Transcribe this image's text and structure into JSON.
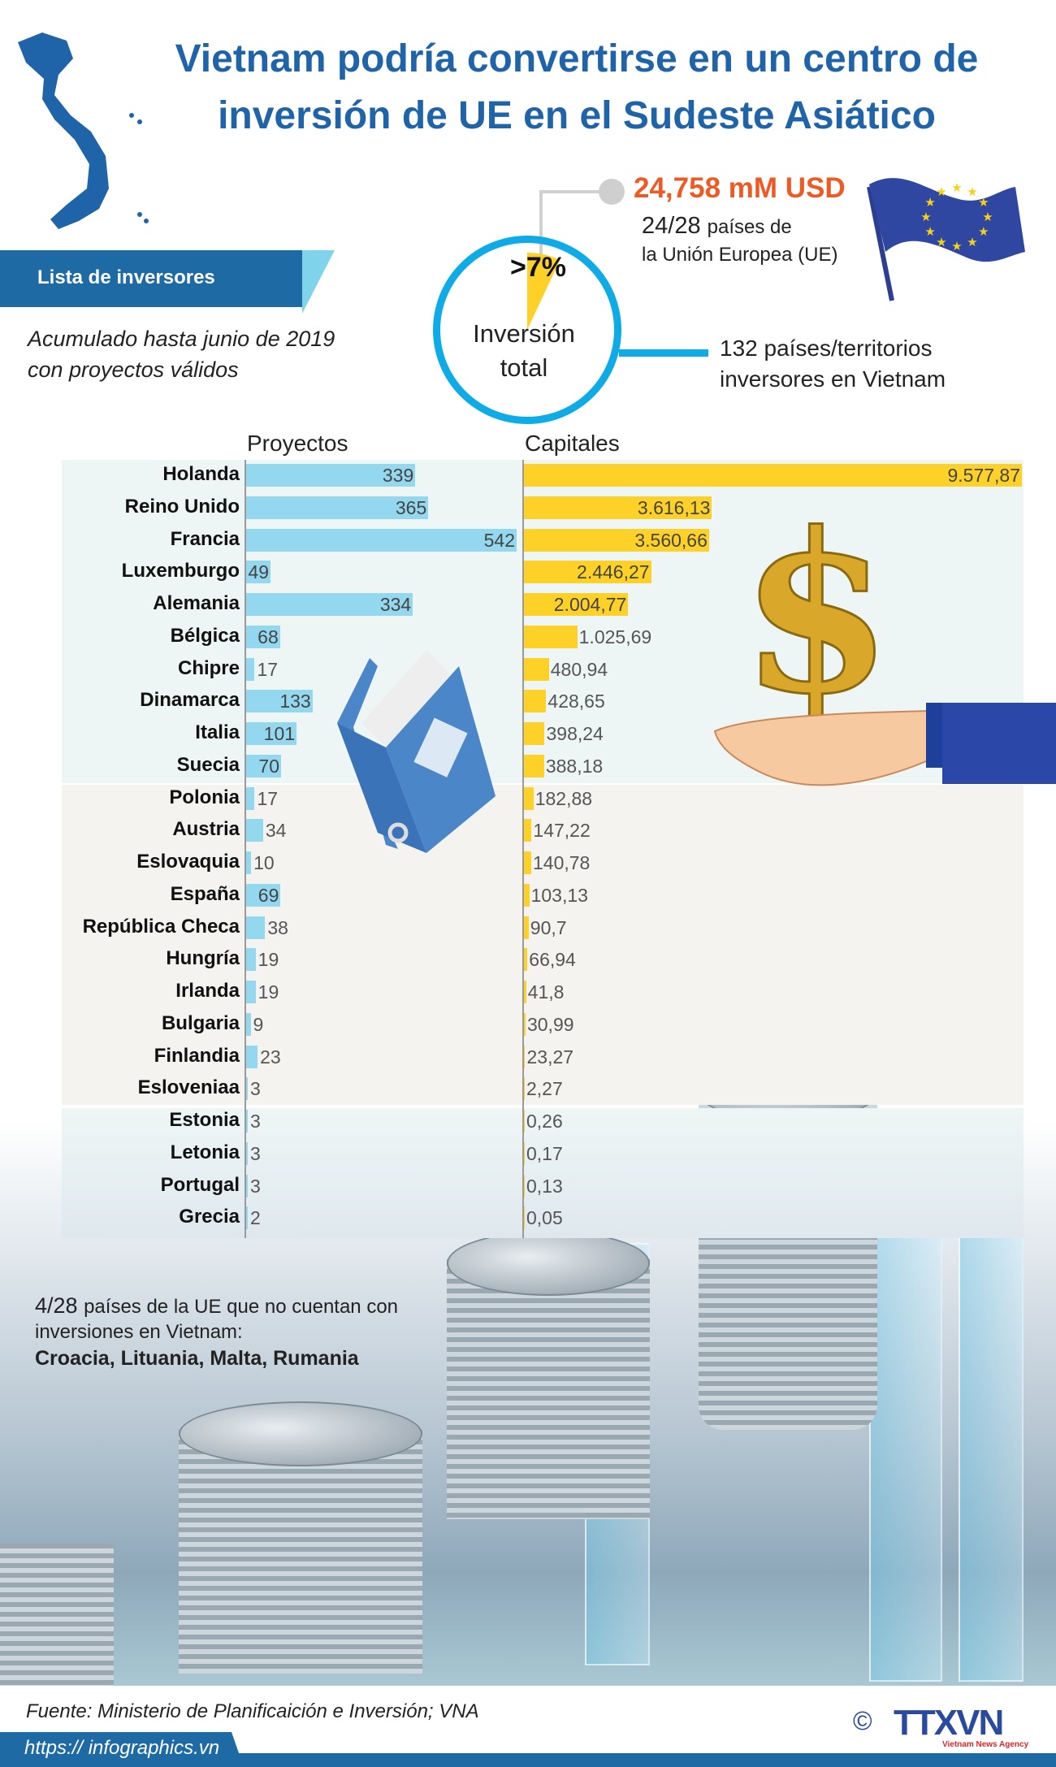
{
  "title": {
    "line1": "Vietnam podría convertirse en un centro de",
    "line2": "inversión de UE en el Sudeste Asiático"
  },
  "banner": {
    "label": "Lista de inversores"
  },
  "subtitle": {
    "line1": "Acumulado hasta junio de 2019",
    "line2": "con proyectos válidos"
  },
  "summary": {
    "percent": ">7%",
    "circle_line1": "Inversión",
    "circle_line2": "total",
    "amount": "24,758 mM USD",
    "eu_count": "24/28",
    "eu_text1": "países de",
    "eu_text2": "la Unión Europea (UE)",
    "partners_line1": "132 países/territorios",
    "partners_line2": "inversores en Vietnam",
    "share_fraction": 0.07
  },
  "colors": {
    "title": "#1f63a8",
    "projects_bar": "#93d8ef",
    "capital_bar": "#fed128",
    "amount": "#ee5a24",
    "circle": "#0fabe7",
    "brand": "#1d6aa5"
  },
  "chart_data": {
    "type": "bar",
    "orientation": "horizontal",
    "series": [
      {
        "name": "Proyectos",
        "key": "projects"
      },
      {
        "name": "Capitales",
        "key": "capital"
      }
    ],
    "rows": [
      {
        "country": "Holanda",
        "projects": 339,
        "capital": 9577.87,
        "capital_label": "9.577,87"
      },
      {
        "country": "Reino Unido",
        "projects": 365,
        "capital": 3616.13,
        "capital_label": "3.616,13"
      },
      {
        "country": "Francia",
        "projects": 542,
        "capital": 3560.66,
        "capital_label": "3.560,66"
      },
      {
        "country": "Luxemburgo",
        "projects": 49,
        "capital": 2446.27,
        "capital_label": "2.446,27"
      },
      {
        "country": "Alemania",
        "projects": 334,
        "capital": 2004.77,
        "capital_label": "2.004,77"
      },
      {
        "country": "Bélgica",
        "projects": 68,
        "capital": 1025.69,
        "capital_label": "1.025,69"
      },
      {
        "country": "Chipre",
        "projects": 17,
        "capital": 480.94,
        "capital_label": "480,94"
      },
      {
        "country": "Dinamarca",
        "projects": 133,
        "capital": 428.65,
        "capital_label": "428,65"
      },
      {
        "country": "Italia",
        "projects": 101,
        "capital": 398.24,
        "capital_label": "398,24"
      },
      {
        "country": "Suecia",
        "projects": 70,
        "capital": 388.18,
        "capital_label": "388,18"
      },
      {
        "country": "Polonia",
        "projects": 17,
        "capital": 182.88,
        "capital_label": "182,88"
      },
      {
        "country": "Austria",
        "projects": 34,
        "capital": 147.22,
        "capital_label": "147,22"
      },
      {
        "country": "Eslovaquia",
        "projects": 10,
        "capital": 140.78,
        "capital_label": "140,78"
      },
      {
        "country": "España",
        "projects": 69,
        "capital": 103.13,
        "capital_label": "103,13"
      },
      {
        "country": "República Checa",
        "projects": 38,
        "capital": 90.7,
        "capital_label": "90,7"
      },
      {
        "country": "Hungría",
        "projects": 19,
        "capital": 66.94,
        "capital_label": "66,94"
      },
      {
        "country": "Irlanda",
        "projects": 19,
        "capital": 41.8,
        "capital_label": "41,8"
      },
      {
        "country": "Bulgaria",
        "projects": 9,
        "capital": 30.99,
        "capital_label": "30,99"
      },
      {
        "country": "Finlandia",
        "projects": 23,
        "capital": 23.27,
        "capital_label": "23,27"
      },
      {
        "country": "Esloveniaa",
        "projects": 3,
        "capital": 2.27,
        "capital_label": "2,27"
      },
      {
        "country": "Estonia",
        "projects": 3,
        "capital": 0.26,
        "capital_label": "0,26"
      },
      {
        "country": "Letonia",
        "projects": 3,
        "capital": 0.17,
        "capital_label": "0,17"
      },
      {
        "country": "Portugal",
        "projects": 3,
        "capital": 0.13,
        "capital_label": "0,13"
      },
      {
        "country": "Grecia",
        "projects": 2,
        "capital": 0.05,
        "capital_label": "0,05"
      }
    ]
  },
  "note": {
    "count": "4/28",
    "line1": "países de la UE que no cuentan con",
    "line2": "inversiones en Vietnam:",
    "countries": "Croacia, Lituania, Malta, Rumania"
  },
  "footer": {
    "source": "Fuente: Ministerio de Planificaición e Inversión; VNA",
    "url": "https:// infographics.vn",
    "copyright": "©",
    "logo": "TTXVN",
    "logo_sub": "Vietnam News Agency"
  }
}
